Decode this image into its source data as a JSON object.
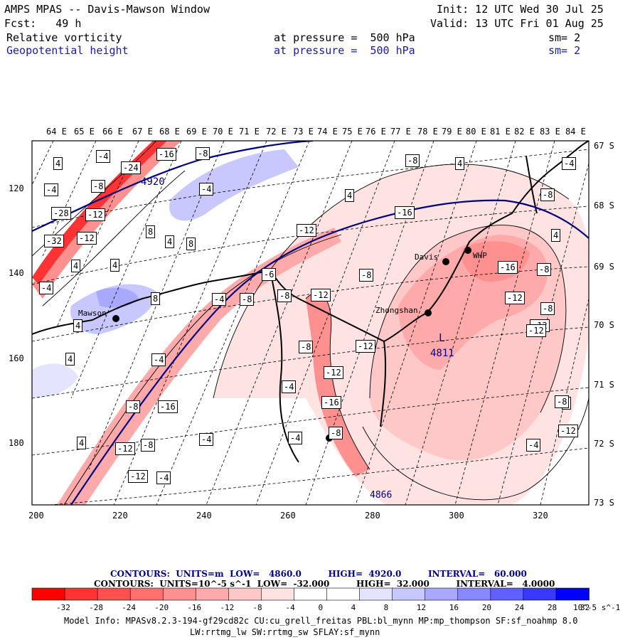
{
  "header": {
    "line1_left": "AMPS MPAS -- Davis-Mawson Window",
    "line1_right": "Init: 12 UTC Wed 30 Jul 25",
    "line2_left": "Fcst:   49 h",
    "line2_right": "Valid: 13 UTC Fri 01 Aug 25",
    "field1": "Relative vorticity",
    "field1_level": "at pressure =  500 hPa",
    "field1_sm": "sm= 2",
    "field2": "Geopotential height",
    "field2_level": "at pressure =  500 hPa",
    "field2_sm": "sm= 2"
  },
  "top_axis": [
    "64 E",
    "65 E",
    "66 E",
    "67 E",
    "68 E",
    "69 E",
    "70 E",
    "71 E",
    "72 E",
    "73 E",
    "74 E",
    "75 E",
    "76 E",
    "77 E",
    "78 E",
    "79 E",
    "80 E",
    "81 E",
    "82 E",
    "83 E",
    "84 E"
  ],
  "right_axis": [
    "67 S",
    "68 S",
    "69 S",
    "70 S",
    "71 S",
    "72 S",
    "73 S"
  ],
  "left_axis": [
    "120",
    "140",
    "160",
    "180"
  ],
  "bottom_axis": [
    "200",
    "220",
    "240",
    "260",
    "280",
    "300",
    "320"
  ],
  "stations": [
    {
      "name": "Mawson"
    },
    {
      "name": "Davis"
    },
    {
      "name": "WHP"
    },
    {
      "name": "Zhongshan"
    }
  ],
  "height_labels": [
    "4920",
    "4811",
    "4866"
  ],
  "height_low_symbol": "L",
  "vorticity_labels": [
    "4",
    "-4",
    "-16",
    "-8",
    "-24",
    "-8",
    "-4",
    "-28",
    "-12",
    "-32",
    "-4",
    "4",
    "4",
    "8",
    "4",
    "8",
    "-4",
    "-12",
    "-12",
    "-8",
    "-6",
    "8",
    "4",
    "-8",
    "4",
    "-12",
    "-16",
    "-8",
    "-8",
    "-12",
    "-4",
    "-4",
    "-12",
    "-16",
    "-8",
    "-16",
    "-8",
    "-4",
    "-12",
    "4",
    "-4",
    "-12",
    "-4",
    "4",
    "-8",
    "-8",
    "4",
    "-8",
    "-16",
    "-12",
    "-12",
    "-4",
    "-8",
    "4",
    "-4",
    "-8",
    "4",
    "-8",
    "-12",
    "-4",
    "-12"
  ],
  "legend": {
    "contours1": "CONTOURS:  UNITS=m  LOW=   4860.0         HIGH=  4920.0         INTERVAL=   60.000",
    "contours2": "CONTOURS:  UNITS=10^-5 s^-1  LOW=  -32.000         HIGH=  32.000         INTERVAL=   4.0000",
    "colorbar_ticks": [
      "-32",
      "-28",
      "-24",
      "-20",
      "-16",
      "-12",
      "-8",
      "-4",
      "0",
      "4",
      "8",
      "12",
      "16",
      "20",
      "24",
      "28",
      "32"
    ],
    "colorbar_unit": "10^-5 s^-1",
    "colors": [
      "#ff0000",
      "#ff3333",
      "#ff5050",
      "#ff7070",
      "#ff9090",
      "#ffaaaa",
      "#ffc8c8",
      "#ffe2e2",
      "#ffffff",
      "#ffffff",
      "#e4e4ff",
      "#c8c8ff",
      "#a8a8ff",
      "#8888ff",
      "#6060ff",
      "#3838ff",
      "#0000ff"
    ]
  },
  "model_info": {
    "line1": "Model Info: MPASv8.2.3-194-gf29cd82c CU:cu_grell_freitas PBL:bl_mynn MP:mp_thompson SF:sf_noahmp 8.0",
    "line2": "LW:rrtmg_lw SW:rrtmg_sw SFLAY:sf_mynn"
  }
}
